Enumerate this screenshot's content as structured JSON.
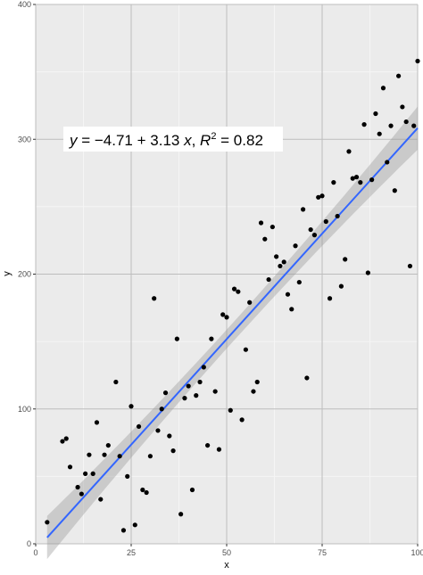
{
  "chart_data": {
    "type": "scatter",
    "xlabel": "x",
    "ylabel": "y",
    "xlim": [
      0,
      100
    ],
    "ylim": [
      0,
      400
    ],
    "x_ticks": [
      "0",
      "25",
      "50",
      "75",
      "100"
    ],
    "y_ticks": [
      "0",
      "100",
      "200",
      "300",
      "400"
    ],
    "x_tick_values": [
      0,
      25,
      50,
      75,
      100
    ],
    "y_tick_values": [
      0,
      100,
      200,
      300,
      400
    ],
    "grid": true,
    "equation": {
      "y_var": "y",
      "equals": " = −4.71 + 3.13 ",
      "x_var": "x",
      "sep": ", ",
      "r_var": "R",
      "r_exp": "2",
      "r_value": " = 0.82"
    },
    "fit": {
      "intercept": -4.71,
      "slope": 3.13,
      "x_range": [
        3,
        100
      ],
      "ci_halfwidth_ends": 16,
      "ci_halfwidth_mid": 7
    },
    "colors": {
      "panel": "#ebebeb",
      "grid_major": "#bdbdbd",
      "grid_minor": "#f5f5f5",
      "point": "#000000",
      "line": "#3366ff",
      "ribbon": "#999999"
    },
    "points": [
      [
        3,
        16
      ],
      [
        7,
        76
      ],
      [
        8,
        78
      ],
      [
        9,
        57
      ],
      [
        11,
        42
      ],
      [
        12,
        37
      ],
      [
        13,
        52
      ],
      [
        14,
        66
      ],
      [
        15,
        52
      ],
      [
        16,
        90
      ],
      [
        17,
        33
      ],
      [
        18,
        66
      ],
      [
        19,
        73
      ],
      [
        21,
        120
      ],
      [
        22,
        65
      ],
      [
        23,
        10
      ],
      [
        24,
        50
      ],
      [
        25,
        102
      ],
      [
        26,
        14
      ],
      [
        27,
        87
      ],
      [
        28,
        40
      ],
      [
        29,
        38
      ],
      [
        30,
        65
      ],
      [
        31,
        182
      ],
      [
        32,
        84
      ],
      [
        33,
        100
      ],
      [
        34,
        112
      ],
      [
        35,
        80
      ],
      [
        36,
        69
      ],
      [
        37,
        152
      ],
      [
        38,
        22
      ],
      [
        39,
        108
      ],
      [
        40,
        117
      ],
      [
        41,
        40
      ],
      [
        42,
        110
      ],
      [
        43,
        120
      ],
      [
        44,
        131
      ],
      [
        45,
        73
      ],
      [
        46,
        152
      ],
      [
        47,
        113
      ],
      [
        48,
        70
      ],
      [
        49,
        170
      ],
      [
        50,
        168
      ],
      [
        51,
        99
      ],
      [
        52,
        189
      ],
      [
        53,
        187
      ],
      [
        54,
        92
      ],
      [
        55,
        144
      ],
      [
        56,
        179
      ],
      [
        57,
        113
      ],
      [
        58,
        120
      ],
      [
        59,
        238
      ],
      [
        60,
        226
      ],
      [
        61,
        196
      ],
      [
        62,
        235
      ],
      [
        63,
        213
      ],
      [
        64,
        206
      ],
      [
        65,
        209
      ],
      [
        66,
        185
      ],
      [
        67,
        174
      ],
      [
        68,
        221
      ],
      [
        69,
        194
      ],
      [
        70,
        248
      ],
      [
        71,
        123
      ],
      [
        72,
        233
      ],
      [
        73,
        229
      ],
      [
        74,
        257
      ],
      [
        75,
        258
      ],
      [
        76,
        239
      ],
      [
        77,
        182
      ],
      [
        78,
        268
      ],
      [
        79,
        243
      ],
      [
        80,
        191
      ],
      [
        81,
        211
      ],
      [
        82,
        291
      ],
      [
        83,
        271
      ],
      [
        84,
        272
      ],
      [
        85,
        268
      ],
      [
        86,
        311
      ],
      [
        87,
        201
      ],
      [
        88,
        270
      ],
      [
        89,
        319
      ],
      [
        90,
        304
      ],
      [
        91,
        338
      ],
      [
        92,
        283
      ],
      [
        93,
        310
      ],
      [
        94,
        262
      ],
      [
        95,
        347
      ],
      [
        96,
        324
      ],
      [
        97,
        313
      ],
      [
        98,
        206
      ],
      [
        99,
        310
      ],
      [
        100,
        358
      ]
    ]
  }
}
